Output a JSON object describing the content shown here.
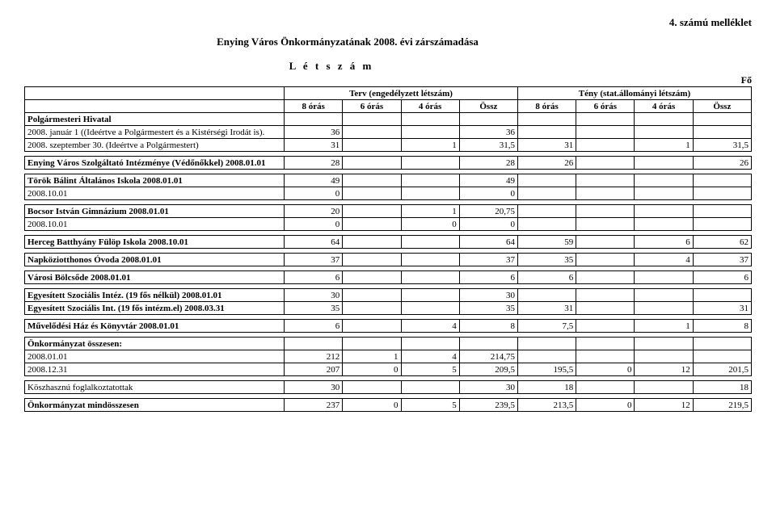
{
  "header": {
    "attachment": "4. számú melléklet",
    "title": "Enying Város Önkormányzatának 2008. évi zárszámadása",
    "subtitle": "L é t s z á m",
    "unit": "Fő"
  },
  "columns": {
    "group1": "Terv (engedélyzett létszám)",
    "group2": "Tény (stat.állományi létszám)",
    "sub": [
      "8 órás",
      "6 órás",
      "4 órás",
      "Össz",
      "8 órás",
      "6 órás",
      "4 órás",
      "Össz"
    ]
  },
  "rows": [
    {
      "label": "Polgármesteri Hivatal",
      "bold": true,
      "vals": [
        "",
        "",
        "",
        "",
        "",
        "",
        "",
        ""
      ]
    },
    {
      "label": "2008. január 1 ((Ideértve a Polgármestert és a Kistérségi Irodát is).",
      "bold": false,
      "vals": [
        "36",
        "",
        "",
        "36",
        "",
        "",
        "",
        ""
      ]
    },
    {
      "label": "2008. szeptember 30. (Ideértve a Polgármestert)",
      "bold": false,
      "vals": [
        "31",
        "",
        "1",
        "31,5",
        "31",
        "",
        "1",
        "31,5"
      ]
    },
    {
      "spacer": true
    },
    {
      "label": "Enying Város Szolgáltató Intézménye (Védőnőkkel) 2008.01.01",
      "bold": true,
      "vals": [
        "28",
        "",
        "",
        "28",
        "26",
        "",
        "",
        "26"
      ]
    },
    {
      "spacer": true
    },
    {
      "label": "Török Bálint Általános Iskola 2008.01.01",
      "bold": true,
      "vals": [
        "49",
        "",
        "",
        "49",
        "",
        "",
        "",
        ""
      ]
    },
    {
      "label": "2008.10.01",
      "bold": false,
      "vals": [
        "0",
        "",
        "",
        "0",
        "",
        "",
        "",
        ""
      ]
    },
    {
      "spacer": true
    },
    {
      "label": "Bocsor István Gimnázium 2008.01.01",
      "bold": true,
      "vals": [
        "20",
        "",
        "1",
        "20,75",
        "",
        "",
        "",
        ""
      ]
    },
    {
      "label": "2008.10.01",
      "bold": false,
      "vals": [
        "0",
        "",
        "0",
        "0",
        "",
        "",
        "",
        ""
      ]
    },
    {
      "spacer": true
    },
    {
      "label": "Herceg Batthyány Fülöp Iskola 2008.10.01",
      "bold": true,
      "vals": [
        "64",
        "",
        "",
        "64",
        "59",
        "",
        "6",
        "62"
      ]
    },
    {
      "spacer": true
    },
    {
      "label": "Napköziotthonos Óvoda 2008.01.01",
      "bold": true,
      "vals": [
        "37",
        "",
        "",
        "37",
        "35",
        "",
        "4",
        "37"
      ]
    },
    {
      "spacer": true
    },
    {
      "label": "Városi Bölcsőde 2008.01.01",
      "bold": true,
      "vals": [
        "6",
        "",
        "",
        "6",
        "6",
        "",
        "",
        "6"
      ]
    },
    {
      "spacer": true
    },
    {
      "label": "Egyesített Szociális Intéz. (19 fős nélkül) 2008.01.01",
      "bold": true,
      "vals": [
        "30",
        "",
        "",
        "30",
        "",
        "",
        "",
        ""
      ]
    },
    {
      "label": "Egyesített Szociális Int. (19 fős intézm.el) 2008.03.31",
      "bold": true,
      "vals": [
        "35",
        "",
        "",
        "35",
        "31",
        "",
        "",
        "31"
      ]
    },
    {
      "spacer": true
    },
    {
      "label": "Művelődési Ház és Könyvtár 2008.01.01",
      "bold": true,
      "vals": [
        "6",
        "",
        "4",
        "8",
        "7,5",
        "",
        "1",
        "8"
      ]
    },
    {
      "spacer": true
    },
    {
      "label": "Önkormányzat összesen:",
      "bold": true,
      "vals": [
        "",
        "",
        "",
        "",
        "",
        "",
        "",
        ""
      ]
    },
    {
      "label": "2008.01.01",
      "bold": false,
      "vals": [
        "212",
        "1",
        "4",
        "214,75",
        "",
        "",
        "",
        ""
      ]
    },
    {
      "label": "2008.12.31",
      "bold": false,
      "vals": [
        "207",
        "0",
        "5",
        "209,5",
        "195,5",
        "0",
        "12",
        "201,5"
      ]
    },
    {
      "spacer": true
    },
    {
      "label": "Köszhasznú foglalkoztatottak",
      "bold": false,
      "vals": [
        "30",
        "",
        "",
        "30",
        "18",
        "",
        "",
        "18"
      ]
    },
    {
      "spacer": true
    },
    {
      "label": "Önkormányzat mindösszesen",
      "bold": true,
      "vals": [
        "237",
        "0",
        "5",
        "239,5",
        "213,5",
        "0",
        "12",
        "219,5"
      ]
    }
  ]
}
